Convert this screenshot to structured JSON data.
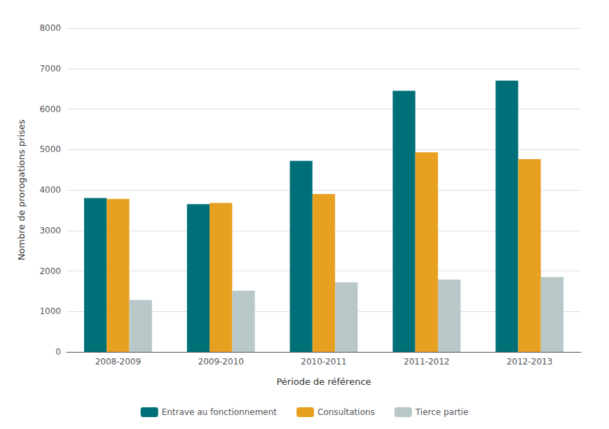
{
  "chart_data": {
    "type": "bar",
    "xlabel": "Période de référence",
    "ylabel": "Nombre de prorogations prises",
    "categories": [
      "2008-2009",
      "2009-2010",
      "2010-2011",
      "2011-2012",
      "2012-2013"
    ],
    "series": [
      {
        "name": "Entrave au fonctionnement",
        "color": "#007078",
        "values": [
          3800,
          3650,
          4720,
          6450,
          6700
        ]
      },
      {
        "name": "Consultations",
        "color": "#E8A020",
        "values": [
          3780,
          3680,
          3900,
          4930,
          4760
        ]
      },
      {
        "name": "Tierce partie",
        "color": "#B8C8C8",
        "values": [
          1280,
          1510,
          1720,
          1790,
          1850
        ]
      }
    ],
    "ylim": [
      0,
      8000
    ],
    "yticks": [
      0,
      1000,
      2000,
      3000,
      4000,
      5000,
      6000,
      7000,
      8000
    ],
    "grid": true,
    "legend": "bottom"
  }
}
